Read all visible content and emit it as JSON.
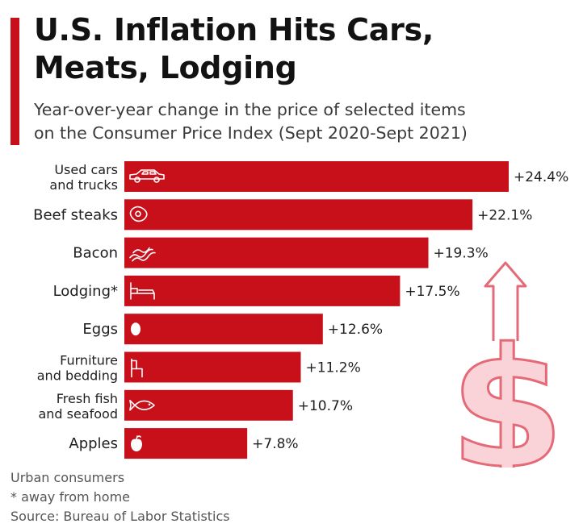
{
  "header": {
    "title_line1": "U.S. Inflation Hits Cars,",
    "title_line2": "Meats, Lodging",
    "subtitle_line1": "Year-over-year change in the price of selected items",
    "subtitle_line2": "on the Consumer Price Index (Sept 2020-Sept 2021)"
  },
  "colors": {
    "bar": "#c8101b",
    "accent": "#c8101b",
    "dollar_fill": "#f9d3d7",
    "dollar_stroke": "#e56a78"
  },
  "chart_data": {
    "type": "bar",
    "orientation": "horizontal",
    "categories": [
      [
        "Used cars",
        "and trucks"
      ],
      [
        "Beef steaks"
      ],
      [
        "Bacon"
      ],
      [
        "Lodging*"
      ],
      [
        "Eggs"
      ],
      [
        "Furniture",
        "and bedding"
      ],
      [
        "Fresh fish",
        "and seafood"
      ],
      [
        "Apples"
      ]
    ],
    "values": [
      24.4,
      22.1,
      19.3,
      17.5,
      12.6,
      11.2,
      10.7,
      7.8
    ],
    "value_labels": [
      "+24.4%",
      "+22.1%",
      "+19.3%",
      "+17.5%",
      "+12.6%",
      "+11.2%",
      "+10.7%",
      "+7.8%"
    ],
    "icons": [
      "car-icon",
      "steak-icon",
      "bacon-icon",
      "bed-icon",
      "egg-icon",
      "chair-icon",
      "fish-icon",
      "apple-icon"
    ],
    "xlim": [
      0,
      24.4
    ],
    "grid": false,
    "legend": "none"
  },
  "footnotes": {
    "line1": "Urban consumers",
    "line2": "* away from home",
    "source": "Source: Bureau of Labor Statistics"
  }
}
